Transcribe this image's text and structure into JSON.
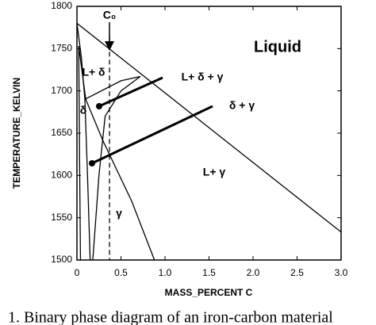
{
  "chart_data": {
    "type": "line",
    "xlabel": "MASS_PERCENT C",
    "ylabel": "TEMPERATURE_KELVIN",
    "xlim": [
      0,
      3
    ],
    "ylim": [
      1500,
      1800
    ],
    "xticks": [
      0,
      0.5,
      {
        "value": 1,
        "label": "1.0"
      },
      1.5,
      {
        "value": 2,
        "label": "2.0"
      },
      2.5,
      {
        "value": 3,
        "label": "3.0"
      }
    ],
    "yticks": [
      1500,
      1550,
      1600,
      1650,
      1700,
      1750,
      1800
    ],
    "color": "#000000",
    "series": [
      {
        "x": [
          0,
          3
        ],
        "values": [
          1780,
          1533
        ]
      },
      {
        "x": [
          0,
          0.05,
          0.09
        ],
        "values": [
          1780,
          1740,
          1690
        ]
      },
      {
        "x": [
          0.09,
          0.5,
          0.72
        ],
        "values": [
          1690,
          1712,
          1717
        ]
      },
      {
        "x": [
          0.02,
          0.03,
          0.04
        ],
        "values": [
          1753,
          1620,
          1500
        ]
      },
      {
        "x": [
          0.02,
          0.1,
          0.3,
          0.62,
          0.88
        ],
        "values": [
          1753,
          1690,
          1640,
          1570,
          1500
        ]
      },
      {
        "x": [
          0.72,
          0.5,
          0.32,
          0.25,
          0.18
        ],
        "values": [
          1717,
          1700,
          1670,
          1600,
          1500
        ]
      },
      {
        "x": [
          0.09,
          0.12,
          0.15
        ],
        "values": [
          1690,
          1600,
          1500
        ]
      },
      {
        "x": [
          0.37,
          0.37
        ],
        "values": [
          1765,
          1500
        ],
        "dashed": true
      }
    ],
    "annotations": [
      "C₀",
      "Liquid",
      "L+ δ",
      "L+ δ + γ",
      "δ + γ",
      "L+ γ",
      "γ",
      "δ"
    ],
    "caption": "1.  Binary phase diagram of an iron-carbon material"
  }
}
